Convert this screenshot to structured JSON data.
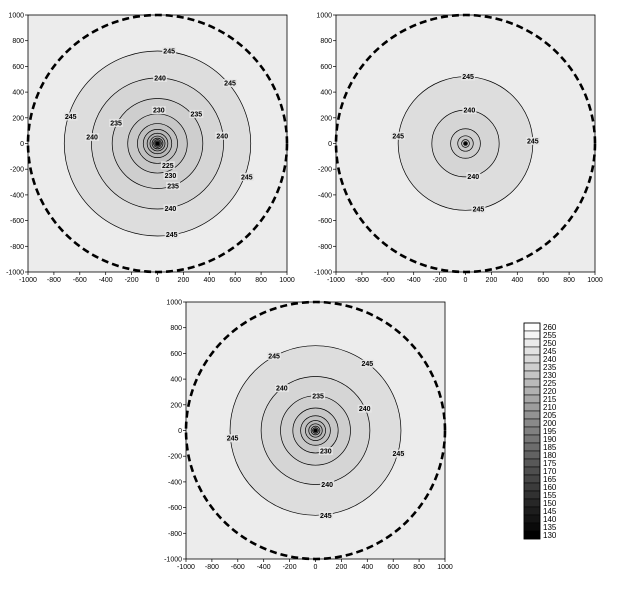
{
  "chart_data": [
    {
      "type": "contour",
      "xlim": [
        -1000,
        1000
      ],
      "ylim": [
        -1000,
        1000
      ],
      "x_ticks": [
        -1000,
        -800,
        -600,
        -400,
        -200,
        0,
        200,
        400,
        600,
        800,
        1000
      ],
      "y_ticks": [
        -1000,
        -800,
        -600,
        -400,
        -200,
        0,
        200,
        400,
        600,
        800,
        1000
      ],
      "boundary_radius": 1000,
      "contours": [
        {
          "level": 245,
          "radius": 720
        },
        {
          "level": 240,
          "radius": 510
        },
        {
          "level": 235,
          "radius": 350
        },
        {
          "level": 230,
          "radius": 230
        },
        {
          "level": 225,
          "radius": 155
        },
        {
          "level": 220,
          "radius": 110
        },
        {
          "level": 215,
          "radius": 80
        },
        {
          "level": 210,
          "radius": 58
        },
        {
          "level": 205,
          "radius": 42
        },
        {
          "level": 200,
          "radius": 30
        },
        {
          "level": 195,
          "radius": 21
        },
        {
          "level": 190,
          "radius": 14
        }
      ],
      "labels": [
        {
          "text": "245",
          "x": 90,
          "y": 720
        },
        {
          "text": "245",
          "x": 560,
          "y": 470
        },
        {
          "text": "245",
          "x": -670,
          "y": 210
        },
        {
          "text": "245",
          "x": 690,
          "y": -260
        },
        {
          "text": "245",
          "x": 110,
          "y": -710
        },
        {
          "text": "240",
          "x": 20,
          "y": 510
        },
        {
          "text": "240",
          "x": 500,
          "y": 60
        },
        {
          "text": "240",
          "x": -505,
          "y": 50
        },
        {
          "text": "240",
          "x": 100,
          "y": -505
        },
        {
          "text": "235",
          "x": -320,
          "y": 160
        },
        {
          "text": "235",
          "x": 300,
          "y": 230
        },
        {
          "text": "235",
          "x": 120,
          "y": -330
        },
        {
          "text": "230",
          "x": 10,
          "y": 260
        },
        {
          "text": "230",
          "x": 100,
          "y": -250
        },
        {
          "text": "225",
          "x": 80,
          "y": -170
        }
      ]
    },
    {
      "type": "contour",
      "xlim": [
        -1000,
        1000
      ],
      "ylim": [
        -1000,
        1000
      ],
      "x_ticks": [
        -1000,
        -800,
        -600,
        -400,
        -200,
        0,
        200,
        400,
        600,
        800,
        1000
      ],
      "y_ticks": [
        -1000,
        -800,
        -600,
        -400,
        -200,
        0,
        200,
        400,
        600,
        800,
        1000
      ],
      "boundary_radius": 1000,
      "contours": [
        {
          "level": 245,
          "radius": 520
        },
        {
          "level": 240,
          "radius": 260
        },
        {
          "level": 235,
          "radius": 115
        },
        {
          "level": 230,
          "radius": 60
        },
        {
          "level": 225,
          "radius": 30
        },
        {
          "level": 220,
          "radius": 15
        }
      ],
      "labels": [
        {
          "text": "245",
          "x": 20,
          "y": 520
        },
        {
          "text": "245",
          "x": -520,
          "y": 60
        },
        {
          "text": "245",
          "x": 520,
          "y": 20
        },
        {
          "text": "245",
          "x": 100,
          "y": -510
        },
        {
          "text": "240",
          "x": 30,
          "y": 260
        },
        {
          "text": "240",
          "x": 60,
          "y": -255
        }
      ]
    },
    {
      "type": "contour",
      "xlim": [
        -1000,
        1000
      ],
      "ylim": [
        -1000,
        1000
      ],
      "x_ticks": [
        -1000,
        -800,
        -600,
        -400,
        -200,
        0,
        200,
        400,
        600,
        800,
        1000
      ],
      "y_ticks": [
        -1000,
        -800,
        -600,
        -400,
        -200,
        0,
        200,
        400,
        600,
        800,
        1000
      ],
      "boundary_radius": 1000,
      "contours": [
        {
          "level": 245,
          "radius": 660
        },
        {
          "level": 240,
          "radius": 420
        },
        {
          "level": 235,
          "radius": 270
        },
        {
          "level": 230,
          "radius": 175
        },
        {
          "level": 225,
          "radius": 115
        },
        {
          "level": 220,
          "radius": 78
        },
        {
          "level": 215,
          "radius": 52
        },
        {
          "level": 210,
          "radius": 34
        },
        {
          "level": 205,
          "radius": 22
        },
        {
          "level": 200,
          "radius": 14
        }
      ],
      "labels": [
        {
          "text": "245",
          "x": -320,
          "y": 580
        },
        {
          "text": "245",
          "x": 400,
          "y": 520
        },
        {
          "text": "245",
          "x": -640,
          "y": -60
        },
        {
          "text": "245",
          "x": 640,
          "y": -180
        },
        {
          "text": "245",
          "x": 80,
          "y": -660
        },
        {
          "text": "240",
          "x": -260,
          "y": 330
        },
        {
          "text": "240",
          "x": 380,
          "y": 170
        },
        {
          "text": "240",
          "x": 90,
          "y": -420
        },
        {
          "text": "235",
          "x": 20,
          "y": 270
        },
        {
          "text": "230",
          "x": 80,
          "y": -160
        }
      ]
    }
  ],
  "legend": {
    "levels": [
      260,
      255,
      250,
      245,
      240,
      235,
      230,
      225,
      220,
      215,
      210,
      205,
      200,
      195,
      190,
      185,
      180,
      175,
      170,
      165,
      160,
      155,
      150,
      145,
      140,
      135,
      130
    ],
    "labels": [
      "260",
      "255",
      "250",
      "245",
      "240",
      "235",
      "230",
      "225",
      "220",
      "215",
      "210",
      "205",
      "200",
      "195",
      "190",
      "185",
      "180",
      "175",
      "170",
      "165",
      "160",
      "155",
      "150",
      "145",
      "140",
      "135",
      "130"
    ]
  }
}
